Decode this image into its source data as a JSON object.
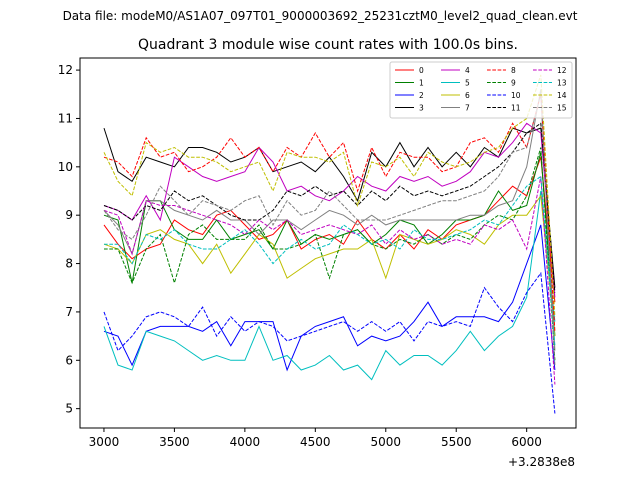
{
  "suptitle": "Data file: modeM0/AS1A07_097T01_9000003692_25231cztM0_level2_quad_clean.evt",
  "chart_data": {
    "type": "line",
    "title": "Quadrant 3 module wise count rates with 100.0s bins.",
    "xlabel": "",
    "ylabel": "",
    "x_offset_label": "+3.2838e8",
    "xlim": [
      2830,
      6350
    ],
    "ylim": [
      4.6,
      12.25
    ],
    "xticks": [
      3000,
      3500,
      4000,
      4500,
      5000,
      5500,
      6000
    ],
    "xtick_labels": [
      "3000",
      "3500",
      "4000",
      "4500",
      "5000",
      "5500",
      "6000"
    ],
    "yticks": [
      5,
      6,
      7,
      8,
      9,
      10,
      11,
      12
    ],
    "ytick_labels": [
      "5",
      "6",
      "7",
      "8",
      "9",
      "10",
      "11",
      "12"
    ],
    "grid": false,
    "legend_position": "top-right",
    "x": [
      3000,
      3100,
      3200,
      3300,
      3400,
      3500,
      3600,
      3700,
      3800,
      3900,
      4000,
      4100,
      4200,
      4300,
      4400,
      4500,
      4600,
      4700,
      4800,
      4900,
      5000,
      5100,
      5200,
      5300,
      5400,
      5500,
      5600,
      5700,
      5800,
      5900,
      6000,
      6100,
      6200
    ],
    "series": [
      {
        "name": "0",
        "color": "#ff0000",
        "dash": "solid",
        "values": [
          8.8,
          8.4,
          8.1,
          8.3,
          8.4,
          8.9,
          8.7,
          8.6,
          9.0,
          9.1,
          8.8,
          8.5,
          8.6,
          8.9,
          8.3,
          8.5,
          8.6,
          8.4,
          8.9,
          8.5,
          8.3,
          8.6,
          8.3,
          8.7,
          8.5,
          8.8,
          8.9,
          9.0,
          9.3,
          9.6,
          9.4,
          10.2,
          7.2
        ]
      },
      {
        "name": "1",
        "color": "#008000",
        "dash": "solid",
        "values": [
          9.0,
          8.9,
          7.6,
          9.3,
          9.3,
          8.7,
          8.5,
          8.5,
          8.9,
          8.5,
          8.6,
          8.7,
          8.3,
          8.9,
          8.4,
          8.6,
          8.5,
          8.6,
          8.7,
          8.4,
          8.6,
          8.9,
          8.8,
          8.4,
          8.6,
          8.9,
          8.9,
          9.0,
          9.5,
          9.1,
          9.2,
          10.3,
          6.5
        ]
      },
      {
        "name": "2",
        "color": "#0000ff",
        "dash": "solid",
        "values": [
          6.6,
          6.5,
          5.9,
          6.6,
          6.7,
          6.7,
          6.7,
          6.6,
          6.8,
          6.3,
          6.8,
          6.8,
          6.8,
          5.8,
          6.5,
          6.7,
          6.8,
          6.9,
          6.3,
          6.5,
          6.4,
          6.5,
          6.8,
          7.2,
          6.7,
          6.9,
          6.9,
          6.9,
          6.8,
          7.2,
          8.0,
          8.8,
          5.8
        ]
      },
      {
        "name": "3",
        "color": "#000000",
        "dash": "solid",
        "values": [
          10.8,
          9.9,
          9.7,
          10.2,
          10.1,
          10.0,
          10.4,
          10.4,
          10.3,
          10.1,
          10.2,
          10.4,
          9.9,
          10.0,
          10.1,
          9.9,
          10.2,
          9.8,
          9.3,
          10.3,
          10.0,
          10.5,
          10.0,
          10.4,
          10.0,
          10.3,
          10.0,
          10.4,
          10.2,
          10.8,
          10.7,
          10.8,
          7.5
        ]
      },
      {
        "name": "4",
        "color": "#c000c0",
        "dash": "solid",
        "values": [
          9.2,
          9.1,
          8.9,
          9.4,
          8.9,
          10.2,
          10.0,
          9.8,
          9.7,
          9.8,
          9.9,
          10.4,
          10.1,
          9.5,
          9.6,
          9.4,
          9.3,
          9.5,
          9.8,
          9.6,
          9.5,
          9.8,
          9.7,
          9.8,
          9.6,
          9.7,
          9.9,
          10.3,
          10.2,
          10.5,
          10.9,
          10.7,
          7.3
        ]
      },
      {
        "name": "5",
        "color": "#00bfbf",
        "dash": "solid",
        "values": [
          6.7,
          5.9,
          5.8,
          6.6,
          6.5,
          6.4,
          6.2,
          6.0,
          6.1,
          6.0,
          6.0,
          6.7,
          6.0,
          6.1,
          5.8,
          5.9,
          6.1,
          5.8,
          5.9,
          5.6,
          6.2,
          5.9,
          6.1,
          6.1,
          5.9,
          6.2,
          6.6,
          6.2,
          6.5,
          6.7,
          7.3,
          9.5,
          6.8
        ]
      },
      {
        "name": "6",
        "color": "#bfbf00",
        "dash": "solid",
        "values": [
          8.4,
          8.3,
          8.0,
          8.6,
          8.7,
          8.5,
          8.4,
          8.0,
          8.4,
          7.8,
          8.2,
          8.6,
          8.4,
          7.7,
          7.9,
          8.1,
          8.2,
          8.3,
          8.3,
          8.5,
          7.7,
          8.6,
          8.5,
          8.4,
          8.5,
          8.7,
          8.6,
          8.4,
          8.8,
          9.0,
          9.0,
          9.4,
          6.5
        ]
      },
      {
        "name": "7",
        "color": "#808080",
        "dash": "solid",
        "values": [
          9.1,
          8.8,
          8.2,
          9.3,
          9.3,
          9.1,
          9.0,
          8.9,
          9.1,
          8.9,
          8.9,
          8.6,
          8.9,
          8.9,
          8.7,
          8.9,
          9.1,
          9.0,
          8.8,
          9.0,
          8.8,
          8.9,
          8.9,
          8.9,
          8.9,
          8.9,
          9.0,
          9.0,
          9.2,
          9.3,
          10.0,
          11.6,
          6.2
        ]
      },
      {
        "name": "8",
        "color": "#ff0000",
        "dash": "dashed",
        "values": [
          10.2,
          10.1,
          9.8,
          10.6,
          10.2,
          10.3,
          9.9,
          10.0,
          10.2,
          10.6,
          10.2,
          10.4,
          9.9,
          10.4,
          10.2,
          10.7,
          10.2,
          10.5,
          9.5,
          10.4,
          9.8,
          10.3,
          10.2,
          10.2,
          9.9,
          10.0,
          10.5,
          10.6,
          10.3,
          10.9,
          10.4,
          11.5,
          6.6
        ]
      },
      {
        "name": "9",
        "color": "#008000",
        "dash": "dashed",
        "values": [
          8.3,
          8.3,
          7.6,
          8.3,
          8.6,
          7.6,
          8.6,
          8.8,
          8.5,
          8.5,
          8.5,
          8.8,
          8.3,
          8.3,
          8.4,
          8.6,
          7.7,
          8.6,
          8.7,
          8.4,
          8.3,
          8.5,
          8.4,
          8.6,
          8.4,
          8.6,
          8.5,
          8.8,
          9.0,
          8.9,
          9.4,
          10.4,
          6.0
        ]
      },
      {
        "name": "10",
        "color": "#0000ff",
        "dash": "dashed",
        "values": [
          7.0,
          6.2,
          6.5,
          6.9,
          7.0,
          6.9,
          6.7,
          7.1,
          6.5,
          6.9,
          6.6,
          6.8,
          6.7,
          6.4,
          6.5,
          6.6,
          6.7,
          6.8,
          6.6,
          6.8,
          6.6,
          6.8,
          6.4,
          6.8,
          6.7,
          6.8,
          6.7,
          7.5,
          7.1,
          6.8,
          7.4,
          7.8,
          4.9
        ]
      },
      {
        "name": "11",
        "color": "#000000",
        "dash": "dashed",
        "values": [
          9.2,
          9.1,
          8.9,
          9.2,
          9.1,
          9.5,
          9.3,
          9.4,
          9.2,
          9.0,
          8.9,
          8.9,
          9.1,
          9.5,
          9.4,
          9.6,
          9.4,
          9.5,
          9.2,
          9.5,
          9.3,
          9.6,
          9.4,
          9.5,
          9.4,
          9.5,
          9.6,
          9.8,
          10.0,
          10.3,
          10.7,
          10.9,
          7.4
        ]
      },
      {
        "name": "12",
        "color": "#c000c0",
        "dash": "dashed",
        "values": [
          9.1,
          9.0,
          8.2,
          9.3,
          9.2,
          9.2,
          9.1,
          9.0,
          8.9,
          8.8,
          8.6,
          8.9,
          8.7,
          8.9,
          8.6,
          8.7,
          8.8,
          8.7,
          8.6,
          8.8,
          8.4,
          8.7,
          8.5,
          8.6,
          8.4,
          8.5,
          8.4,
          8.8,
          8.7,
          8.9,
          8.3,
          9.8,
          5.5
        ]
      },
      {
        "name": "13",
        "color": "#00bfbf",
        "dash": "dashed",
        "values": [
          8.4,
          8.4,
          8.0,
          8.6,
          8.5,
          8.7,
          8.4,
          8.3,
          8.3,
          8.5,
          8.7,
          8.4,
          8.0,
          8.3,
          8.5,
          8.3,
          8.4,
          8.8,
          8.6,
          8.4,
          8.5,
          8.3,
          8.7,
          8.5,
          8.5,
          8.6,
          8.7,
          8.9,
          8.8,
          9.2,
          9.6,
          9.8,
          6.3
        ]
      },
      {
        "name": "14",
        "color": "#bfbf00",
        "dash": "dashed",
        "values": [
          10.3,
          9.7,
          9.4,
          10.5,
          10.3,
          10.4,
          10.2,
          10.2,
          10.1,
          9.9,
          10.0,
          10.1,
          9.5,
          10.3,
          10.2,
          10.2,
          10.1,
          10.3,
          9.2,
          10.1,
          10.0,
          10.2,
          9.8,
          10.3,
          10.1,
          10.0,
          10.1,
          10.3,
          10.4,
          10.8,
          11.0,
          11.9,
          6.9
        ]
      },
      {
        "name": "15",
        "color": "#808080",
        "dash": "dashed",
        "values": [
          9.1,
          8.7,
          8.5,
          9.0,
          9.6,
          9.3,
          9.0,
          9.3,
          9.2,
          9.1,
          9.3,
          9.4,
          8.8,
          9.3,
          9.0,
          9.1,
          9.5,
          9.2,
          8.9,
          8.9,
          8.9,
          9.0,
          9.1,
          9.2,
          9.3,
          9.3,
          9.4,
          9.5,
          9.8,
          10.3,
          10.4,
          11.5,
          5.9
        ]
      }
    ]
  }
}
